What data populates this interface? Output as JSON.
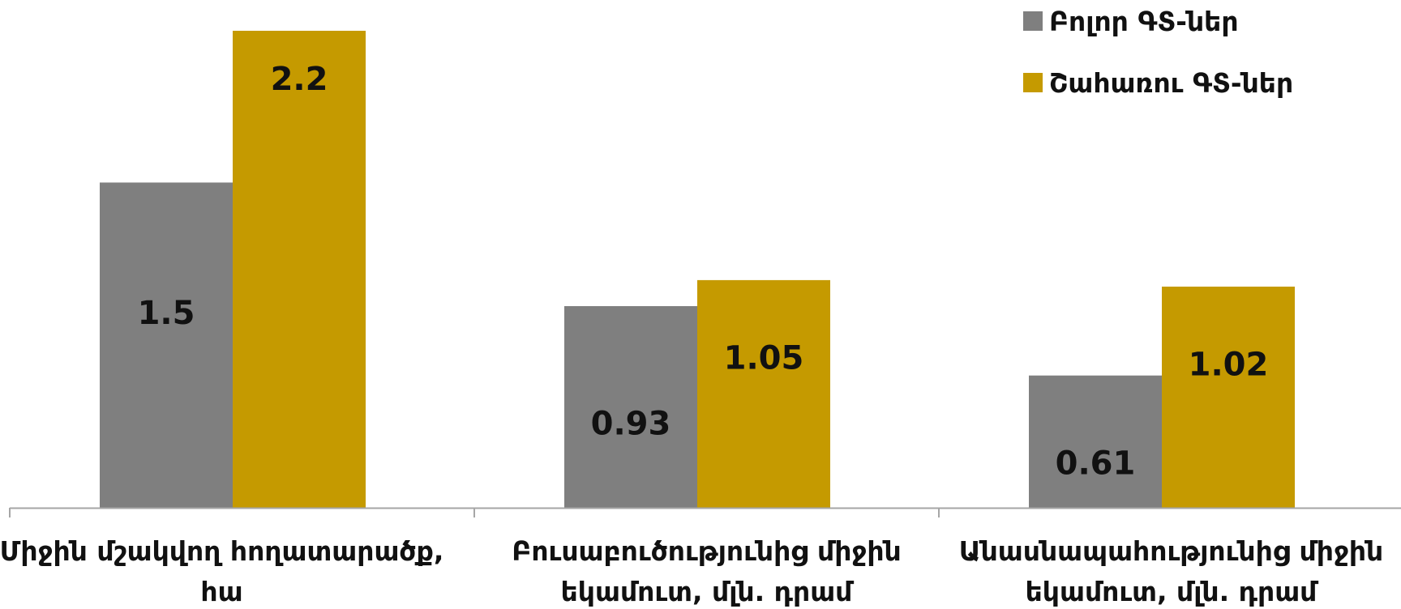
{
  "chart_data": {
    "type": "bar",
    "categories": [
      [
        "Միջին մշակվող հողատարածք,",
        "հա"
      ],
      [
        "Բուսաբուծությունից միջին",
        "եկամուտ, մլն. դրամ"
      ],
      [
        "Անասնապահությունից միջին",
        "եկամուտ, մլն. դրամ"
      ]
    ],
    "series": [
      {
        "name": "Բոլոր ԳՏ-ներ",
        "values": [
          1.5,
          0.93,
          0.61
        ],
        "labels": [
          "1.5",
          "0.93",
          "0.61"
        ],
        "color": "#7f7f7f"
      },
      {
        "name": "Շահառու ԳՏ-ներ",
        "values": [
          2.2,
          1.05,
          1.02
        ],
        "labels": [
          "2.2",
          "1.05",
          "1.02"
        ],
        "color": "#c59a00"
      }
    ],
    "ylim": [
      0,
      2.3
    ],
    "grid": false,
    "legend_position": "top-right",
    "axis_color": "#a6a6a6"
  }
}
